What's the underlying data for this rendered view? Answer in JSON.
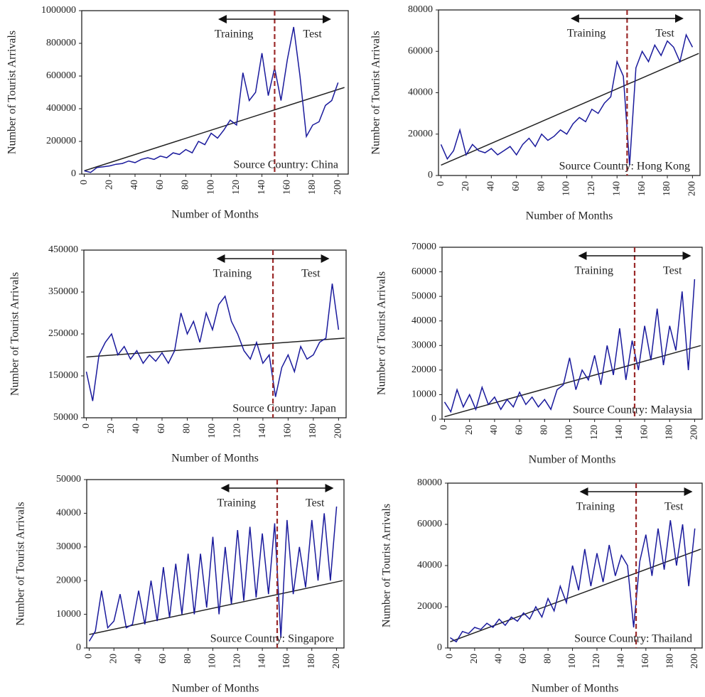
{
  "chart_data": [
    {
      "type": "line",
      "x": [
        0,
        5,
        10,
        15,
        20,
        25,
        30,
        35,
        40,
        45,
        50,
        55,
        60,
        65,
        70,
        75,
        80,
        85,
        90,
        95,
        100,
        105,
        110,
        115,
        120,
        125,
        130,
        135,
        140,
        145,
        150,
        155,
        160,
        165,
        170,
        175,
        180,
        185,
        190,
        195,
        200
      ],
      "values": [
        20000,
        10000,
        40000,
        45000,
        50000,
        60000,
        65000,
        80000,
        70000,
        90000,
        100000,
        90000,
        110000,
        100000,
        130000,
        120000,
        150000,
        130000,
        200000,
        180000,
        250000,
        220000,
        270000,
        330000,
        300000,
        620000,
        450000,
        500000,
        740000,
        480000,
        650000,
        450000,
        700000,
        900000,
        600000,
        230000,
        300000,
        320000,
        420000,
        450000,
        560000
      ],
      "color": "#1a1a9c",
      "trend": {
        "x": [
          0,
          205
        ],
        "values": [
          20000,
          530000
        ],
        "color": "#222222"
      },
      "xlim": [
        -2,
        208
      ],
      "xticks": [
        0,
        20,
        40,
        60,
        80,
        100,
        120,
        140,
        160,
        180,
        200
      ],
      "ylim": [
        0,
        1000000
      ],
      "yticks": [
        0,
        200000,
        400000,
        600000,
        800000,
        1000000
      ],
      "split_x": 150,
      "left_label": "Training",
      "right_label": "Test",
      "annotation": "Source Country: China",
      "xlabel": "Number of Months",
      "ylabel": "Number of Tourist Arrivals"
    },
    {
      "type": "line",
      "x": [
        0,
        5,
        10,
        15,
        20,
        25,
        30,
        35,
        40,
        45,
        50,
        55,
        60,
        65,
        70,
        75,
        80,
        85,
        90,
        95,
        100,
        105,
        110,
        115,
        120,
        125,
        130,
        135,
        140,
        145,
        150,
        155,
        160,
        165,
        170,
        175,
        180,
        185,
        190,
        195,
        200
      ],
      "values": [
        15000,
        8000,
        12000,
        22000,
        10000,
        15000,
        12000,
        11000,
        13000,
        10000,
        12000,
        14000,
        10000,
        15000,
        18000,
        14000,
        20000,
        17000,
        19000,
        22000,
        20000,
        25000,
        28000,
        26000,
        32000,
        30000,
        35000,
        38000,
        55000,
        48000,
        5000,
        52000,
        60000,
        55000,
        63000,
        58000,
        65000,
        62000,
        55000,
        68000,
        62000
      ],
      "color": "#1a1a9c",
      "trend": {
        "x": [
          0,
          205
        ],
        "values": [
          5000,
          59000
        ],
        "color": "#222222"
      },
      "xlim": [
        -2,
        206
      ],
      "xticks": [
        0,
        20,
        40,
        60,
        80,
        100,
        120,
        140,
        160,
        180,
        200
      ],
      "ylim": [
        0,
        80000
      ],
      "yticks": [
        0,
        20000,
        40000,
        60000,
        80000
      ],
      "split_x": 148,
      "left_label": "Training",
      "right_label": "Test",
      "annotation": "Source Country: Hong Kong",
      "xlabel": "Number of Months",
      "ylabel": "Number of Tourist Arrivals"
    },
    {
      "type": "line",
      "x": [
        0,
        5,
        10,
        15,
        20,
        25,
        30,
        35,
        40,
        45,
        50,
        55,
        60,
        65,
        70,
        75,
        80,
        85,
        90,
        95,
        100,
        105,
        110,
        115,
        120,
        125,
        130,
        135,
        140,
        145,
        150,
        155,
        160,
        165,
        170,
        175,
        180,
        185,
        190,
        195,
        200
      ],
      "values": [
        160000,
        90000,
        200000,
        230000,
        250000,
        200000,
        220000,
        190000,
        210000,
        180000,
        200000,
        185000,
        205000,
        180000,
        210000,
        300000,
        250000,
        280000,
        230000,
        300000,
        260000,
        320000,
        340000,
        280000,
        250000,
        210000,
        190000,
        230000,
        180000,
        200000,
        100000,
        170000,
        200000,
        160000,
        220000,
        190000,
        200000,
        230000,
        240000,
        370000,
        260000
      ],
      "color": "#1a1a9c",
      "trend": {
        "x": [
          0,
          205
        ],
        "values": [
          195000,
          240000
        ],
        "color": "#222222"
      },
      "xlim": [
        -2,
        206
      ],
      "xticks": [
        0,
        20,
        40,
        60,
        80,
        100,
        120,
        140,
        160,
        180,
        200
      ],
      "ylim": [
        50000,
        450000
      ],
      "yticks": [
        50000,
        150000,
        250000,
        350000,
        450000
      ],
      "split_x": 148,
      "left_label": "Training",
      "right_label": "Test",
      "annotation": "Source Country: Japan",
      "xlabel": "Number of Months",
      "ylabel": "Number of Tourist Arrivals"
    },
    {
      "type": "line",
      "x": [
        0,
        5,
        10,
        15,
        20,
        25,
        30,
        35,
        40,
        45,
        50,
        55,
        60,
        65,
        70,
        75,
        80,
        85,
        90,
        95,
        100,
        105,
        110,
        115,
        120,
        125,
        130,
        135,
        140,
        145,
        150,
        155,
        160,
        165,
        170,
        175,
        180,
        185,
        190,
        195,
        200
      ],
      "values": [
        7000,
        3000,
        12000,
        5000,
        10000,
        4000,
        13000,
        6000,
        9000,
        4000,
        8000,
        5000,
        11000,
        6000,
        9000,
        5000,
        8000,
        4000,
        12000,
        14000,
        25000,
        12000,
        20000,
        16000,
        26000,
        14000,
        30000,
        18000,
        37000,
        16000,
        32000,
        20000,
        38000,
        24000,
        45000,
        22000,
        38000,
        28000,
        52000,
        20000,
        57000
      ],
      "color": "#1a1a9c",
      "trend": {
        "x": [
          0,
          205
        ],
        "values": [
          1000,
          30000
        ],
        "color": "#222222"
      },
      "xlim": [
        -2,
        206
      ],
      "xticks": [
        0,
        20,
        40,
        60,
        80,
        100,
        120,
        140,
        160,
        180,
        200
      ],
      "ylim": [
        0,
        70000
      ],
      "yticks": [
        0,
        10000,
        20000,
        30000,
        40000,
        50000,
        60000,
        70000
      ],
      "split_x": 152,
      "left_label": "Training",
      "right_label": "Test",
      "annotation": "Source Country: Malaysia",
      "xlabel": "Number of Months",
      "ylabel": "Number of Tourist Arrivals"
    },
    {
      "type": "line",
      "x": [
        0,
        5,
        10,
        15,
        20,
        25,
        30,
        35,
        40,
        45,
        50,
        55,
        60,
        65,
        70,
        75,
        80,
        85,
        90,
        95,
        100,
        105,
        110,
        115,
        120,
        125,
        130,
        135,
        140,
        145,
        150,
        155,
        160,
        165,
        170,
        175,
        180,
        185,
        190,
        195,
        200
      ],
      "values": [
        2000,
        5000,
        17000,
        6000,
        8000,
        16000,
        6000,
        7000,
        17000,
        7000,
        20000,
        8000,
        24000,
        9000,
        25000,
        10000,
        28000,
        10000,
        28000,
        12000,
        33000,
        10000,
        30000,
        13000,
        35000,
        14000,
        36000,
        15000,
        34000,
        16000,
        37000,
        3000,
        38000,
        16000,
        30000,
        18000,
        38000,
        20000,
        40000,
        20000,
        42000
      ],
      "color": "#1a1a9c",
      "trend": {
        "x": [
          0,
          205
        ],
        "values": [
          4000,
          20000
        ],
        "color": "#222222"
      },
      "xlim": [
        -2,
        206
      ],
      "xticks": [
        0,
        20,
        40,
        60,
        80,
        100,
        120,
        140,
        160,
        180,
        200
      ],
      "ylim": [
        0,
        50000
      ],
      "yticks": [
        0,
        10000,
        20000,
        30000,
        40000,
        50000
      ],
      "split_x": 152,
      "left_label": "Training",
      "right_label": "Test",
      "annotation": "Source Country: Singapore",
      "xlabel": "Number of Months",
      "ylabel": "Number of Tourist Arrivals"
    },
    {
      "type": "line",
      "x": [
        0,
        5,
        10,
        15,
        20,
        25,
        30,
        35,
        40,
        45,
        50,
        55,
        60,
        65,
        70,
        75,
        80,
        85,
        90,
        95,
        100,
        105,
        110,
        115,
        120,
        125,
        130,
        135,
        140,
        145,
        150,
        155,
        160,
        165,
        170,
        175,
        180,
        185,
        190,
        195,
        200
      ],
      "values": [
        5000,
        3000,
        8000,
        7000,
        10000,
        9000,
        12000,
        10000,
        14000,
        11000,
        15000,
        13000,
        17000,
        14000,
        20000,
        15000,
        24000,
        18000,
        30000,
        22000,
        40000,
        28000,
        48000,
        30000,
        46000,
        32000,
        50000,
        35000,
        45000,
        40000,
        10000,
        42000,
        55000,
        35000,
        58000,
        38000,
        62000,
        40000,
        60000,
        30000,
        58000
      ],
      "color": "#1a1a9c",
      "trend": {
        "x": [
          0,
          205
        ],
        "values": [
          3000,
          48000
        ],
        "color": "#222222"
      },
      "xlim": [
        -2,
        206
      ],
      "xticks": [
        0,
        20,
        40,
        60,
        80,
        100,
        120,
        140,
        160,
        180,
        200
      ],
      "ylim": [
        0,
        80000
      ],
      "yticks": [
        0,
        20000,
        40000,
        60000,
        80000
      ],
      "split_x": 152,
      "left_label": "Training",
      "right_label": "Test",
      "annotation": "Source Country: Thailand",
      "xlabel": "Number of Months",
      "ylabel": "Number of Tourist Arrivals"
    }
  ]
}
